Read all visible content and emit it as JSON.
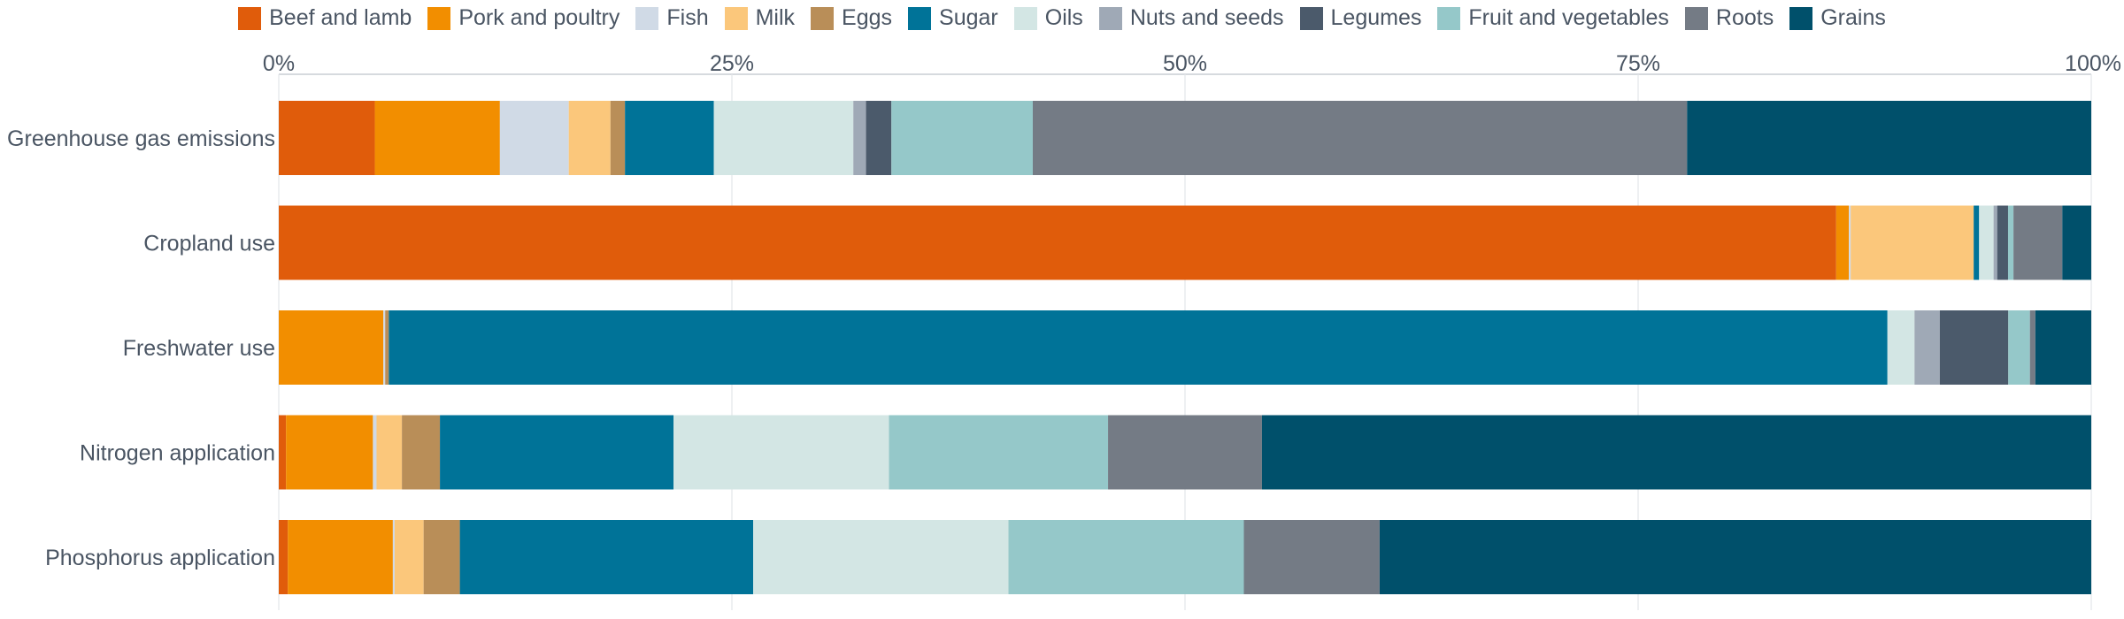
{
  "chart_data": {
    "type": "bar",
    "orientation": "horizontal",
    "stacked": true,
    "normalized": true,
    "categories": [
      "Greenhouse gas emissions",
      "Cropland use",
      "Freshwater use",
      "Nitrogen application",
      "Phosphorus application"
    ],
    "x_ticks": [
      "0%",
      "25%",
      "50%",
      "75%",
      "100%"
    ],
    "xlim": [
      0,
      100
    ],
    "grid": true,
    "legend_position": "top-center",
    "series": [
      {
        "name": "Beef and lamb",
        "color": "#e05c0b",
        "values": [
          5.3,
          86.1,
          0.0,
          0.4,
          0.5
        ]
      },
      {
        "name": "Pork and poultry",
        "color": "#f28e00",
        "values": [
          6.9,
          0.7,
          5.8,
          4.8,
          5.8
        ]
      },
      {
        "name": "Fish",
        "color": "#d0dae6",
        "values": [
          3.8,
          0.1,
          0.1,
          0.2,
          0.1
        ]
      },
      {
        "name": "Milk",
        "color": "#fbc77b",
        "values": [
          2.3,
          6.8,
          0.0,
          1.4,
          1.6
        ]
      },
      {
        "name": "Eggs",
        "color": "#b98e58",
        "values": [
          0.8,
          0.0,
          0.2,
          2.1,
          2.0
        ]
      },
      {
        "name": "Sugar",
        "color": "#007398",
        "values": [
          4.9,
          0.3,
          83.1,
          12.9,
          16.2
        ]
      },
      {
        "name": "Oils",
        "color": "#d3e6e4",
        "values": [
          7.7,
          0.8,
          1.5,
          11.9,
          14.1
        ]
      },
      {
        "name": "Nuts and seeds",
        "color": "#9fa9b6",
        "values": [
          0.7,
          0.2,
          1.4,
          0.0,
          0.0
        ]
      },
      {
        "name": "Legumes",
        "color": "#4b5a6b",
        "values": [
          1.4,
          0.6,
          3.8,
          0.0,
          0.0
        ]
      },
      {
        "name": "Fruit and vegetables",
        "color": "#95c8c9",
        "values": [
          7.8,
          0.3,
          1.2,
          12.1,
          13.0
        ]
      },
      {
        "name": "Roots",
        "color": "#747b85",
        "values": [
          36.1,
          2.7,
          0.3,
          8.5,
          7.5
        ]
      },
      {
        "name": "Grains",
        "color": "#00506b",
        "values": [
          22.3,
          1.6,
          3.1,
          45.8,
          39.3
        ]
      }
    ]
  }
}
